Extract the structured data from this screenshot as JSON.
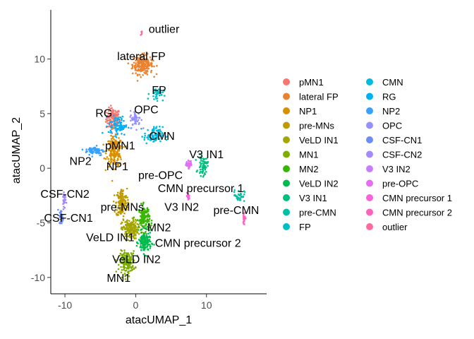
{
  "chart_data": {
    "type": "scatter",
    "xlabel": "atacUMAP_1",
    "ylabel": "atacUMAP_2",
    "xlim": [
      -12,
      18.5
    ],
    "ylim": [
      -11.5,
      14.5
    ],
    "xticks": [
      -10,
      0,
      10
    ],
    "yticks": [
      -10,
      -5,
      0,
      5,
      10
    ],
    "legend_position": "right",
    "legend_columns": 2,
    "series": [
      {
        "name": "pMN1",
        "color": "#F8766D",
        "cx": -3.2,
        "cy": 4.5,
        "sx": 0.9,
        "sy": 0.9,
        "n": 140
      },
      {
        "name": "lateral FP",
        "color": "#EA8331",
        "cx": 1.0,
        "cy": 9.5,
        "sx": 1.3,
        "sy": 0.8,
        "n": 220
      },
      {
        "name": "NP1",
        "color": "#D89000",
        "cx": -3.0,
        "cy": 1.5,
        "sx": 1.0,
        "sy": 1.2,
        "n": 200
      },
      {
        "name": "pre-MNs",
        "color": "#C09B00",
        "cx": -2.0,
        "cy": -3.2,
        "sx": 0.7,
        "sy": 1.2,
        "n": 160
      },
      {
        "name": "VeLD IN1",
        "color": "#A3A500",
        "cx": -0.8,
        "cy": -5.6,
        "sx": 1.0,
        "sy": 0.8,
        "n": 180
      },
      {
        "name": "MN1",
        "color": "#7CAE00",
        "cx": -1.2,
        "cy": -8.6,
        "sx": 1.0,
        "sy": 0.9,
        "n": 170
      },
      {
        "name": "MN2",
        "color": "#39B600",
        "cx": 1.2,
        "cy": -4.6,
        "sx": 0.7,
        "sy": 1.1,
        "n": 140
      },
      {
        "name": "VeLD IN2",
        "color": "#00BB4E",
        "cx": 1.3,
        "cy": -6.8,
        "sx": 0.8,
        "sy": 0.9,
        "n": 150
      },
      {
        "name": "V3 IN1",
        "color": "#00BF7D",
        "cx": 9.5,
        "cy": 0.2,
        "sx": 0.6,
        "sy": 0.8,
        "n": 60
      },
      {
        "name": "pre-CMN",
        "color": "#00C1A3",
        "cx": 14.6,
        "cy": -2.5,
        "sx": 0.7,
        "sy": 0.5,
        "n": 40
      },
      {
        "name": "FP",
        "color": "#00BFC4",
        "cx": 3.0,
        "cy": 6.8,
        "sx": 0.9,
        "sy": 0.5,
        "n": 40
      },
      {
        "name": "CMN",
        "color": "#00BAE0",
        "cx": 2.5,
        "cy": 3.0,
        "sx": 1.2,
        "sy": 0.7,
        "n": 90
      },
      {
        "name": "RG",
        "color": "#00B0F6",
        "cx": -2.5,
        "cy": 3.9,
        "sx": 1.2,
        "sy": 0.8,
        "n": 80
      },
      {
        "name": "NP2",
        "color": "#35A2FF",
        "cx": -5.8,
        "cy": 1.6,
        "sx": 1.2,
        "sy": 0.4,
        "n": 70
      },
      {
        "name": "OPC",
        "color": "#9590FF",
        "cx": 0.0,
        "cy": 4.5,
        "sx": 0.7,
        "sy": 0.7,
        "n": 50
      },
      {
        "name": "CSF-CN1",
        "color": "#6C8DF6",
        "cx": -10.5,
        "cy": -4.5,
        "sx": 0.25,
        "sy": 0.6,
        "n": 40
      },
      {
        "name": "CSF-CN2",
        "color": "#A58AFF",
        "cx": -10.1,
        "cy": -2.8,
        "sx": 0.2,
        "sy": 0.8,
        "n": 30
      },
      {
        "name": "V3 IN2",
        "color": "#C77CFF",
        "cx": 7.3,
        "cy": 0.3,
        "sx": 0.3,
        "sy": 0.2,
        "n": 15
      },
      {
        "name": "pre-OPC",
        "color": "#E76BF3",
        "cx": 7.6,
        "cy": 0.4,
        "sx": 0.3,
        "sy": 0.3,
        "n": 25
      },
      {
        "name": "CMN precursor 1",
        "color": "#FA62DB",
        "cx": 7.4,
        "cy": -2.6,
        "sx": 0.2,
        "sy": 0.3,
        "n": 20
      },
      {
        "name": "CMN precursor 2",
        "color": "#FF62BC",
        "cx": 15.3,
        "cy": -4.6,
        "sx": 0.2,
        "sy": 0.6,
        "n": 25
      },
      {
        "name": "outlier",
        "color": "#FF6A98",
        "cx": 0.8,
        "cy": 12.4,
        "sx": 0.1,
        "sy": 0.15,
        "n": 6
      }
    ],
    "annotations": [
      {
        "text": "outlier",
        "x": 4.0,
        "y": 12.8
      },
      {
        "text": "lateral FP",
        "x": 0.8,
        "y": 10.3
      },
      {
        "text": "FP",
        "x": 3.3,
        "y": 7.2
      },
      {
        "text": "OPC",
        "x": 1.5,
        "y": 5.4
      },
      {
        "text": "RG",
        "x": -4.5,
        "y": 5.1
      },
      {
        "text": "CMN",
        "x": 3.7,
        "y": 3.0
      },
      {
        "text": "pMN1",
        "x": -2.2,
        "y": 2.1
      },
      {
        "text": "V3 IN1",
        "x": 10.0,
        "y": 1.3
      },
      {
        "text": "NP2",
        "x": -7.8,
        "y": 0.7
      },
      {
        "text": "NP1",
        "x": -2.6,
        "y": 0.2
      },
      {
        "text": "pre-OPC",
        "x": 3.5,
        "y": -0.6
      },
      {
        "text": "CMN precursor 1",
        "x": 9.2,
        "y": -1.8
      },
      {
        "text": "CSF-CN2",
        "x": -10.0,
        "y": -2.3
      },
      {
        "text": "pre-MNs",
        "x": -1.9,
        "y": -3.5
      },
      {
        "text": "V3 IN2",
        "x": 6.5,
        "y": -3.5
      },
      {
        "text": "pre-CMN",
        "x": 14.2,
        "y": -3.8
      },
      {
        "text": "CSF-CN1",
        "x": -9.5,
        "y": -4.5
      },
      {
        "text": "MN2",
        "x": 3.3,
        "y": -5.4
      },
      {
        "text": "VeLD IN1",
        "x": -3.6,
        "y": -6.3
      },
      {
        "text": "CMN precursor 2",
        "x": 8.8,
        "y": -6.8
      },
      {
        "text": "VeLD IN2",
        "x": 0.1,
        "y": -8.3
      },
      {
        "text": "MN1",
        "x": -2.4,
        "y": -10.0
      }
    ]
  }
}
